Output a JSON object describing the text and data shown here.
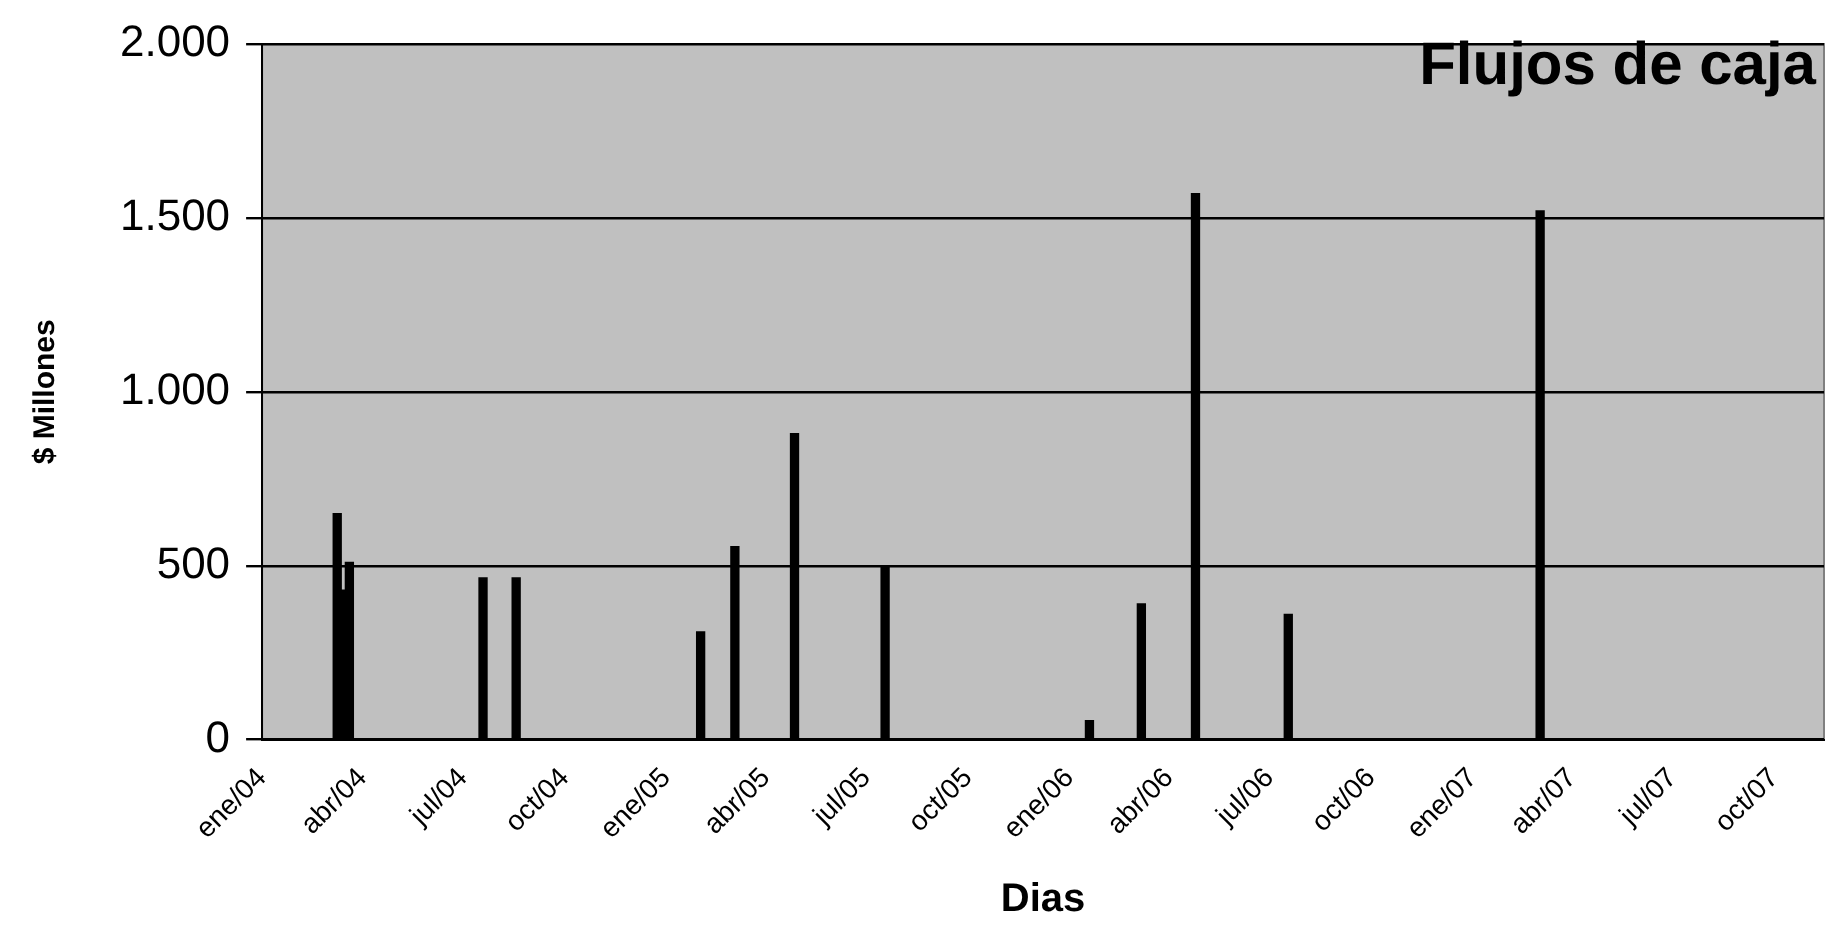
{
  "chart_data": {
    "type": "bar",
    "title": "Flujos de caja",
    "xlabel": "Dias",
    "ylabel": "$ Millones",
    "x": [
      "2004-03-09",
      "2004-03-15",
      "2004-03-20",
      "2004-07-19",
      "2004-08-18",
      "2005-02-01",
      "2005-03-04",
      "2005-04-27",
      "2005-07-18",
      "2006-01-19",
      "2006-03-07",
      "2006-04-25",
      "2006-07-18",
      "2007-03-03"
    ],
    "series": [
      {
        "color": "#000000",
        "values": [
          650,
          430,
          510,
          465,
          465,
          310,
          555,
          880,
          500,
          55,
          390,
          1570,
          360,
          1520
        ]
      }
    ],
    "xlim": [
      "2004-01-01",
      "2007-11-15"
    ],
    "xticks": [
      {
        "value": "2004-01-01",
        "label": "ene/04"
      },
      {
        "value": "2004-04-01",
        "label": "abr/04"
      },
      {
        "value": "2004-07-01",
        "label": "jul/04"
      },
      {
        "value": "2004-10-01",
        "label": "oct/04"
      },
      {
        "value": "2005-01-01",
        "label": "ene/05"
      },
      {
        "value": "2005-04-01",
        "label": "abr/05"
      },
      {
        "value": "2005-07-01",
        "label": "jul/05"
      },
      {
        "value": "2005-10-01",
        "label": "oct/05"
      },
      {
        "value": "2006-01-01",
        "label": "ene/06"
      },
      {
        "value": "2006-04-01",
        "label": "abr/06"
      },
      {
        "value": "2006-07-01",
        "label": "jul/06"
      },
      {
        "value": "2006-10-01",
        "label": "oct/06"
      },
      {
        "value": "2007-01-01",
        "label": "ene/07"
      },
      {
        "value": "2007-04-01",
        "label": "abr/07"
      },
      {
        "value": "2007-07-01",
        "label": "jul/07"
      },
      {
        "value": "2007-10-01",
        "label": "oct/07"
      }
    ],
    "ylim": [
      0,
      2000
    ],
    "yticks": [
      {
        "value": 0,
        "label": "0"
      },
      {
        "value": 500,
        "label": "500"
      },
      {
        "value": 1000,
        "label": "1.000"
      },
      {
        "value": 1500,
        "label": "1.500"
      },
      {
        "value": 2000,
        "label": "2.000"
      }
    ],
    "grid": "y",
    "legend": false
  }
}
